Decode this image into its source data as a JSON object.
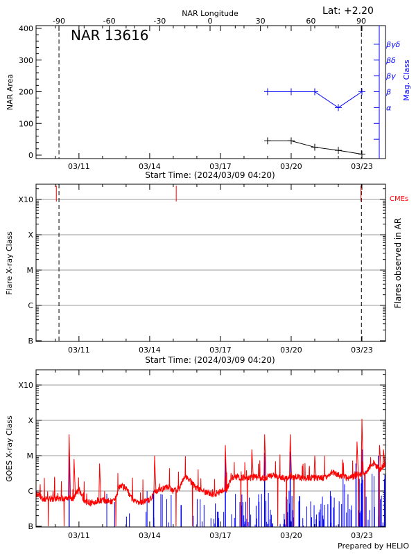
{
  "chart_data": [
    {
      "type": "line",
      "title": "NAR 13616",
      "annotation": "Lat:  +2.20",
      "top_axis": {
        "label": "NAR Longitude",
        "ticks": [
          "-90",
          "-60",
          "-30",
          "0",
          "30",
          "60",
          "90"
        ],
        "values": [
          -90,
          -60,
          -30,
          0,
          30,
          60,
          90
        ]
      },
      "xlabel": "Start Time: (2024/03/09 04:20)",
      "x_range": [
        "2024-03-09T04:20",
        "2024-03-24T00:00"
      ],
      "x_ticks": [
        "03/11",
        "03/14",
        "03/17",
        "03/20",
        "03/23"
      ],
      "ylabel": "NAR Area",
      "ylim": [
        0,
        400
      ],
      "y_ticks": [
        "0",
        "100",
        "200",
        "300",
        "400"
      ],
      "y2label": "Mag. Class",
      "y2_ticks": [
        "α",
        "β",
        "βγ",
        "βδ",
        "βγδ"
      ],
      "y2_color": "#0000ff",
      "limb_lines": [
        "2024-03-10T03:40",
        "2024-03-22T23:30"
      ],
      "series": [
        {
          "color": "#000000",
          "x": [
            "2024-03-19T00:00",
            "2024-03-20T00:00",
            "2024-03-21T00:00",
            "2024-03-22T00:00",
            "2024-03-23T00:00"
          ],
          "values": [
            45,
            45,
            25,
            15,
            3
          ]
        },
        {
          "color": "#0000ff",
          "x": [
            "2024-03-19T00:00",
            "2024-03-20T00:00",
            "2024-03-21T00:00",
            "2024-03-22T00:00",
            "2024-03-23T00:00"
          ],
          "values": [
            "β",
            "β",
            "β",
            "α",
            "β"
          ]
        }
      ]
    },
    {
      "type": "scatter",
      "xlabel": "Start Time: (2024/03/09 04:20)",
      "x_ticks": [
        "03/11",
        "03/14",
        "03/17",
        "03/20",
        "03/23"
      ],
      "ylabel": "Flare X-ray Class",
      "y_ticks": [
        "B",
        "C",
        "M",
        "X",
        "X10"
      ],
      "y2label": "Flares observed in AR",
      "cme_label": "CMEs",
      "cme_color": "#ff0000",
      "cmes": [
        "2024-03-10T01:00",
        "2024-03-15T03:00",
        "2024-03-22T23:00"
      ],
      "limb_lines": [
        "2024-03-10T03:40",
        "2024-03-22T23:30"
      ],
      "grid": true
    },
    {
      "type": "line",
      "ylabel": "GOES X-ray Class",
      "y_ticks": [
        "B",
        "C",
        "M",
        "X",
        "X10"
      ],
      "y_scale": "log",
      "x_ticks": [
        "03/11",
        "03/14",
        "03/17",
        "03/20",
        "03/23"
      ],
      "grid": true,
      "series": [
        {
          "color": "#ff0000",
          "sample_start": "2024-03-09T06:00",
          "sample_step_hours": 6,
          "values": [
            8e-07,
            6e-07,
            6e-07,
            6e-07,
            6e-07,
            6.5e-07,
            6e-07,
            1.1e-06,
            5e-07,
            4.5e-07,
            5e-07,
            5.5e-07,
            5e-07,
            5e-07,
            1.5e-06,
            1.2e-06,
            6e-07,
            4.5e-07,
            5e-07,
            5.5e-07,
            1e-06,
            1.1e-06,
            1.3e-06,
            1e-06,
            1.2e-06,
            2.8e-06,
            1.8e-06,
            1.2e-06,
            1e-06,
            9e-07,
            8e-07,
            1e-06,
            1.1e-06,
            2.5e-06,
            2.5e-06,
            2.3e-06,
            2.3e-06,
            2.5e-06,
            2.2e-06,
            2.5e-06,
            2.8e-06,
            2.5e-06,
            2.3e-06,
            2.5e-06,
            2.5e-06,
            2.2e-06,
            2.4e-06,
            2.4e-06,
            2.3e-06,
            2.5e-06,
            3.5e-06,
            2.8e-06,
            2.5e-06,
            2.3e-06,
            2.8e-06,
            3e-06,
            4e-06,
            6e-06,
            4e-06,
            6e-06
          ],
          "peaks": [
            [
              "2024-03-10T14:00",
              4e-05
            ],
            [
              "2024-03-10T19:00",
              8e-06
            ],
            [
              "2024-03-11T21:00",
              6e-06
            ],
            [
              "2024-03-14T05:00",
              1e-05
            ],
            [
              "2024-03-17T05:00",
              2e-05
            ],
            [
              "2024-03-18T08:00",
              1.5e-05
            ],
            [
              "2024-03-18T21:00",
              4e-05
            ],
            [
              "2024-03-19T23:00",
              4e-05
            ],
            [
              "2024-03-21T00:00",
              1e-05
            ],
            [
              "2024-03-22T19:00",
              2.5e-05
            ],
            [
              "2024-03-23T00:00",
              0.00011
            ],
            [
              "2024-03-23T18:00",
              2e-05
            ],
            [
              "2024-03-23T22:00",
              1.5e-05
            ]
          ]
        },
        {
          "color": "#0000ff",
          "peaks": [
            [
              "2024-03-10T14:00",
              1.5e-05
            ],
            [
              "2024-03-14T04:00",
              1e-06
            ],
            [
              "2024-03-15T08:00",
              4e-07
            ],
            [
              "2024-03-17T05:00",
              8e-06
            ],
            [
              "2024-03-18T21:00",
              1.2e-05
            ],
            [
              "2024-03-19T23:00",
              1.3e-05
            ],
            [
              "2024-03-22T18:00",
              6e-06
            ],
            [
              "2024-03-23T00:00",
              1.5e-05
            ],
            [
              "2024-03-23T17:00",
              1e-05
            ]
          ]
        }
      ]
    }
  ],
  "footer": "Prepared by HELIO"
}
